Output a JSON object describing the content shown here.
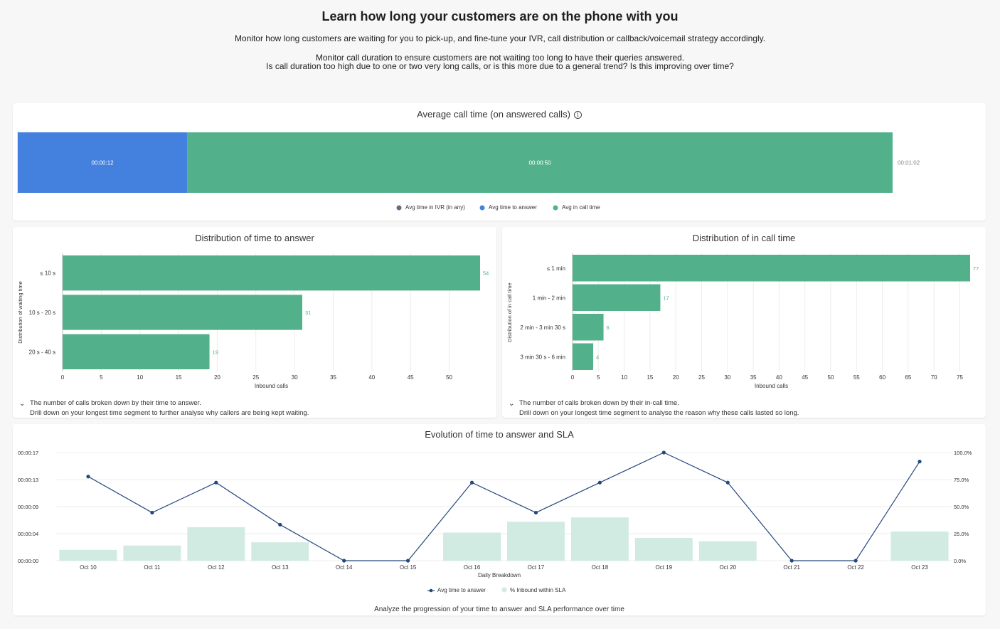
{
  "header": {
    "title": "Learn how long your customers are on the phone with you",
    "line1": "Monitor how long customers are waiting for you to pick-up, and fine-tune your IVR, call distribution or callback/voicemail strategy accordingly.",
    "line2": "Monitor call duration to ensure customers are not waiting too long to have their queries answered.",
    "line3": "Is call duration too high due to one or two very long calls, or is this more due to a general trend? Is this improving over time?"
  },
  "colors": {
    "ivr": "#5b7086",
    "answer": "#4480dd",
    "incall": "#52b18b",
    "sla": "#d1eae2",
    "line": "#24477e"
  },
  "avg_card": {
    "info_icon": "info-icon",
    "total_label": "00:01:02"
  },
  "time_answer_card": {
    "desc1": "The number of calls broken down by their time to answer.",
    "desc2": "Drill down on your longest time segment to further analyse why callers are being kept waiting."
  },
  "in_call_card": {
    "desc1": "The number of calls broken down by their in-call time.",
    "desc2": "Drill down on your longest time segment to analyse the reason why these calls lasted so long."
  },
  "evolution_card": {
    "footer": "Analyze the progression of your time to answer and SLA performance over time"
  },
  "chart_data": [
    {
      "type": "bar",
      "orientation": "horizontal-stacked",
      "title": "Average call time (on answered calls)",
      "series": [
        {
          "name": "Avg time in IVR (in any)",
          "values": [
            0
          ],
          "label": ""
        },
        {
          "name": "Avg time to answer",
          "values": [
            12
          ],
          "label": "00:00:12"
        },
        {
          "name": "Avg in call time",
          "values": [
            50
          ],
          "label": "00:00:50"
        }
      ],
      "total": 62,
      "unit": "seconds",
      "legend": "bottom"
    },
    {
      "type": "bar",
      "orientation": "horizontal",
      "title": "Distribution of time to answer",
      "categories": [
        "≤ 10 s",
        "10 s - 20 s",
        "20 s - 40 s"
      ],
      "values": [
        54,
        31,
        19
      ],
      "xlabel": "Inbound calls",
      "ylabel": "Distribution of waiting time",
      "xlim": [
        0,
        54
      ],
      "xticks": [
        0,
        5,
        10,
        15,
        20,
        25,
        30,
        35,
        40,
        45,
        50
      ],
      "grid": true
    },
    {
      "type": "bar",
      "orientation": "horizontal",
      "title": "Distribution of in call time",
      "categories": [
        "≤ 1 min",
        "1 min - 2 min",
        "2 min - 3 min 30 s",
        "3 min 30 s - 6 min"
      ],
      "values": [
        77,
        17,
        6,
        4
      ],
      "xlabel": "Inbound calls",
      "ylabel": "Distribution of in call time",
      "xlim": [
        0,
        77
      ],
      "xticks": [
        0,
        5,
        10,
        15,
        20,
        25,
        30,
        35,
        40,
        45,
        50,
        55,
        60,
        65,
        70,
        75
      ],
      "grid": true
    },
    {
      "type": "line",
      "title": "Evolution of time to answer and SLA",
      "categories": [
        "Oct 10",
        "Oct 11",
        "Oct 12",
        "Oct 13",
        "Oct 14",
        "Oct 15",
        "Oct 16",
        "Oct 17",
        "Oct 18",
        "Oct 19",
        "Oct 20",
        "Oct 21",
        "Oct 22",
        "Oct 23"
      ],
      "xlabel": "Daily Breakdown",
      "series": [
        {
          "name": "Avg time to answer",
          "type": "line",
          "axis": "left",
          "unit": "seconds",
          "values": [
            14,
            8,
            13,
            6,
            0,
            0,
            13,
            8,
            13,
            18,
            13,
            0,
            0,
            16.5
          ]
        },
        {
          "name": "% Inbound within SLA",
          "type": "bar",
          "axis": "right",
          "unit": "percent",
          "values": [
            10,
            14,
            31,
            17,
            0,
            0,
            26,
            36,
            40,
            21,
            18,
            0,
            0,
            27
          ]
        }
      ],
      "y_left": {
        "ticks": [
          "00:00:00",
          "00:00:04",
          "00:00:09",
          "00:00:13",
          "00:00:17"
        ],
        "range": [
          0,
          18
        ]
      },
      "y_right": {
        "ticks": [
          "0.0%",
          "25.0%",
          "50.0%",
          "75.0%",
          "100.0%"
        ],
        "range": [
          0,
          100
        ]
      },
      "legend": "bottom",
      "grid": true
    }
  ]
}
